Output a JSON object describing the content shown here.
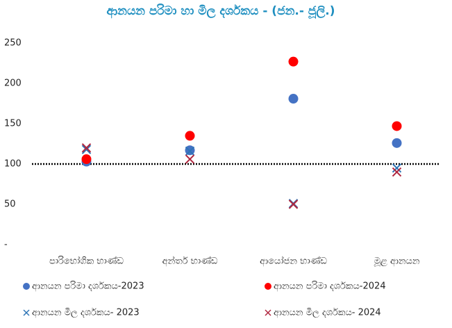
{
  "chart_data": {
    "type": "scatter",
    "title": "ආනයන පරිමා හා මිල දර්ශකය - (ජන.- ජූලි.)",
    "categories": [
      "පාරිභෝගික භාණ්ඩ",
      "අන්තර් භාණ්ඩ",
      "ආයෝජන භාණ්ඩ",
      "මූළ ආනයන"
    ],
    "ylim": [
      0,
      250
    ],
    "yticks": [
      {
        "value": 0,
        "label": "-"
      },
      50,
      100,
      150,
      200,
      250
    ],
    "reference_line": 100,
    "series": [
      {
        "name": "ආනයන පරිමා දර්ශකය-2023",
        "color": "#4472c4",
        "marker": "circle",
        "values": [
          103,
          117,
          181,
          126
        ]
      },
      {
        "name": "ආනයන පරිමා දර්ශකය-2024",
        "color": "#ff0000",
        "marker": "circle",
        "values": [
          106,
          135,
          227,
          147
        ]
      },
      {
        "name": "ආනයන මිල දර්ශකය- 2023",
        "color": "#2e75b6",
        "marker": "x",
        "values": [
          118,
          116,
          51,
          95
        ]
      },
      {
        "name": "ආනයන මිල දර්ශකය- 2024",
        "color": "#b0273f",
        "marker": "x",
        "values": [
          120,
          106,
          50,
          90
        ]
      }
    ]
  }
}
